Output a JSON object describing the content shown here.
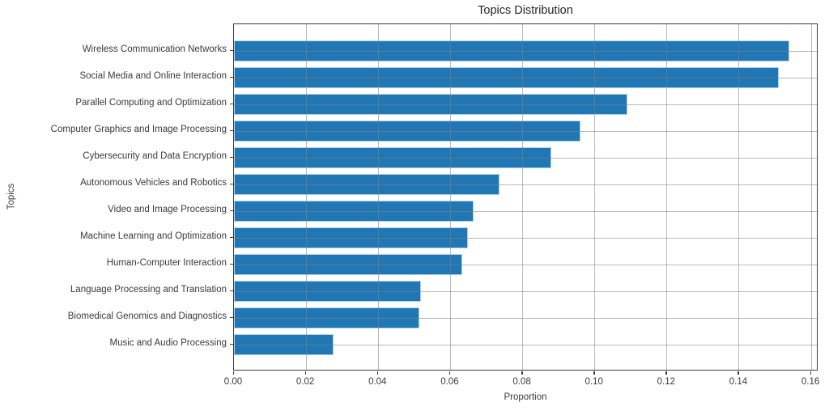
{
  "chart_data": {
    "type": "bar",
    "orientation": "horizontal",
    "title": "Topics Distribution",
    "xlabel": "Proportion",
    "ylabel": "Topics",
    "categories": [
      "Wireless Communication Networks",
      "Social Media and Online Interaction",
      "Parallel Computing and Optimization",
      "Computer Graphics and Image Processing",
      "Cybersecurity and Data Encryption",
      "Autonomous Vehicles and Robotics",
      "Video and Image Processing",
      "Machine Learning and Optimization",
      "Human-Computer Interaction",
      "Language Processing and Translation",
      "Biomedical Genomics and Diagnostics",
      "Music and Audio Processing"
    ],
    "values": [
      0.154,
      0.151,
      0.109,
      0.096,
      0.088,
      0.0736,
      0.0665,
      0.0648,
      0.0632,
      0.0519,
      0.0514,
      0.0276
    ],
    "xlim": [
      0,
      0.162
    ],
    "xticks": [
      0.0,
      0.02,
      0.04,
      0.06,
      0.08,
      0.1,
      0.12,
      0.14,
      0.16
    ],
    "xtick_labels": [
      "0.00",
      "0.02",
      "0.04",
      "0.06",
      "0.08",
      "0.10",
      "0.12",
      "0.14",
      "0.16"
    ],
    "grid": true,
    "grid_above_bars": true,
    "legend": "none",
    "colors": {
      "bar_fill": "#2077b4",
      "bar_edge": "#aed4ea",
      "gridline": "rgba(130,130,130,0.55)",
      "spine": "#3a3a3a",
      "text": "#3a3a3a",
      "title_text": "#262626",
      "background": "#ffffff"
    }
  }
}
